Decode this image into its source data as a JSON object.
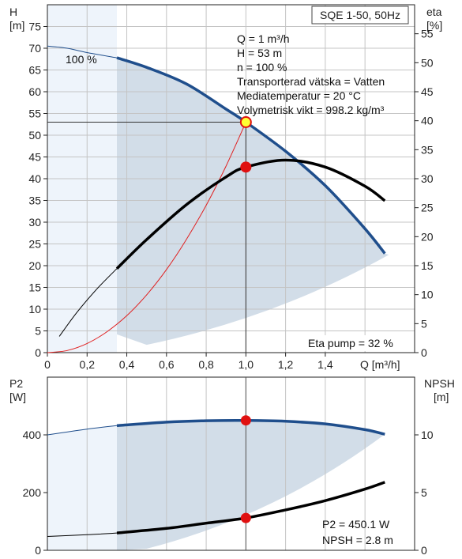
{
  "chart_data": [
    {
      "type": "line",
      "title": "SQE 1-50, 50Hz",
      "xlabel": "Q [m³/h]",
      "ylabel_left": [
        "H",
        "[m]"
      ],
      "ylabel_right": [
        "eta",
        "[%]"
      ],
      "xlim": [
        0,
        1.85
      ],
      "ylim_left": [
        0,
        80
      ],
      "ylim_right": [
        0,
        60
      ],
      "x_ticks": [
        "0",
        "0,2",
        "0,4",
        "0,6",
        "0,8",
        "1,0",
        "1,2",
        "1,4"
      ],
      "y_ticks_left": [
        "0",
        "5",
        "10",
        "15",
        "20",
        "25",
        "30",
        "35",
        "40",
        "45",
        "50",
        "55",
        "60",
        "65",
        "70",
        "75"
      ],
      "y_ticks_right": [
        "0",
        "5",
        "10",
        "15",
        "20",
        "25",
        "30",
        "35",
        "40",
        "45",
        "50",
        "55"
      ],
      "curve_label": "100 %",
      "info_lines": [
        "Q = 1 m³/h",
        "H = 53 m",
        "n = 100 %",
        "Transporterad vätska = Vatten",
        "Mediatemperatur = 20 °C",
        "Volymetrisk vikt = 998.2 kg/m³"
      ],
      "eta_label": "Eta pump = 32 %",
      "series": [
        {
          "key": "H",
          "axis": "left",
          "color": "#1f4e8c",
          "x": [
            0.0,
            0.1,
            0.2,
            0.35,
            0.5,
            0.7,
            0.9,
            1.0,
            1.2,
            1.4,
            1.6,
            1.7
          ],
          "y": [
            70.5,
            70.0,
            69.0,
            67.8,
            65.6,
            61.8,
            56.0,
            53.0,
            46.3,
            38.4,
            28.5,
            22.8
          ]
        },
        {
          "key": "eta",
          "axis": "right",
          "color": "#000000",
          "x": [
            0.06,
            0.15,
            0.25,
            0.35,
            0.5,
            0.7,
            0.9,
            1.0,
            1.2,
            1.4,
            1.6,
            1.7
          ],
          "y": [
            2.8,
            7.0,
            11.0,
            14.5,
            19.5,
            25.5,
            30.3,
            32.0,
            33.2,
            32.0,
            28.7,
            26.2
          ]
        },
        {
          "key": "system",
          "axis": "left",
          "color": "#e02020",
          "x": [
            0.0,
            0.1,
            0.2,
            0.3,
            0.4,
            0.5,
            0.6,
            0.7,
            0.8,
            0.9,
            1.0
          ],
          "y": [
            0.0,
            0.5,
            2.1,
            4.8,
            8.5,
            13.3,
            19.1,
            26.0,
            33.9,
            42.9,
            53.0
          ]
        }
      ],
      "operating_points": [
        {
          "x": 1.0,
          "y": 53,
          "axis": "left"
        },
        {
          "x": 1.0,
          "y": 32,
          "axis": "right"
        }
      ]
    },
    {
      "type": "line",
      "xlim": [
        0,
        1.85
      ],
      "ylabel_left": [
        "P2",
        "[W]"
      ],
      "ylabel_right": [
        "NPSH",
        "[m]"
      ],
      "ylim_left": [
        0,
        600
      ],
      "ylim_right": [
        0,
        15
      ],
      "y_ticks_left": [
        "0",
        "200",
        "400"
      ],
      "y_ticks_right": [
        "0",
        "5",
        "10"
      ],
      "result_lines": [
        "P2 = 450.1 W",
        "NPSH = 2.8 m"
      ],
      "series": [
        {
          "key": "P2",
          "axis": "left",
          "color": "#1f4e8c",
          "x": [
            0.0,
            0.2,
            0.35,
            0.6,
            0.8,
            1.0,
            1.2,
            1.4,
            1.6,
            1.7
          ],
          "y": [
            400,
            420,
            432,
            444,
            449,
            450,
            447,
            438,
            418,
            402
          ]
        },
        {
          "key": "NPSH",
          "axis": "right",
          "color": "#000000",
          "x": [
            0.0,
            0.2,
            0.35,
            0.6,
            0.8,
            1.0,
            1.2,
            1.4,
            1.6,
            1.7
          ],
          "y": [
            1.2,
            1.35,
            1.5,
            1.9,
            2.35,
            2.8,
            3.5,
            4.3,
            5.3,
            5.9
          ]
        }
      ],
      "operating_points": [
        {
          "x": 1.0,
          "y": 450.1,
          "axis": "left"
        },
        {
          "x": 1.0,
          "y": 2.8,
          "axis": "right"
        }
      ]
    }
  ]
}
